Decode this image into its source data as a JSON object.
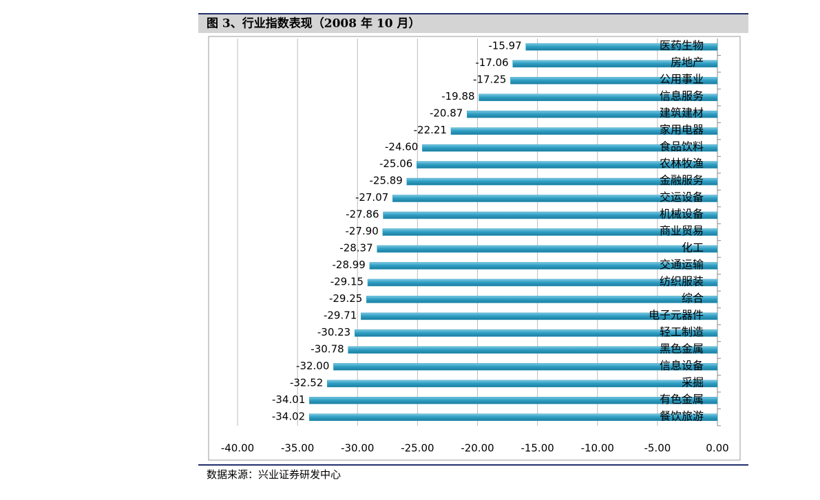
{
  "chart_data": {
    "type": "hbar",
    "title": "图 3、行业指数表现（2008 年 10 月）",
    "source": "数据来源：兴业证券研发中心",
    "categories": [
      "医药生物",
      "房地产",
      "公用事业",
      "信息服务",
      "建筑建材",
      "家用电器",
      "食品饮料",
      "农林牧渔",
      "金融服务",
      "交运设备",
      "机械设备",
      "商业贸易",
      "化工",
      "交通运输",
      "纺织服装",
      "综合",
      "电子元器件",
      "轻工制造",
      "黑色金属",
      "信息设备",
      "采掘",
      "有色金属",
      "餐饮旅游"
    ],
    "values": [
      -15.97,
      -17.06,
      -17.25,
      -19.88,
      -20.87,
      -22.21,
      -24.6,
      -25.06,
      -25.89,
      -27.07,
      -27.86,
      -27.9,
      -28.37,
      -28.99,
      -29.15,
      -29.25,
      -29.71,
      -30.23,
      -30.78,
      -32,
      -32.52,
      -34.01,
      -34.02
    ],
    "value_labels": [
      "-15.97",
      "-17.06",
      "-17.25",
      "-19.88",
      "-20.87",
      "-22.21",
      "-24.60",
      "-25.06",
      "-25.89",
      "-27.07",
      "-27.86",
      "-27.90",
      "-28.37",
      "-28.99",
      "-29.15",
      "-29.25",
      "-29.71",
      "-30.23",
      "-30.78",
      "-32.00",
      "-32.52",
      "-34.01",
      "-34.02"
    ],
    "color": "#2f9fc4",
    "xlim": [
      -40,
      0
    ],
    "xticks": [
      {
        "value": -40,
        "label": "-40.00"
      },
      {
        "value": -35,
        "label": "-35.00"
      },
      {
        "value": -30,
        "label": "-30.00"
      },
      {
        "value": -25,
        "label": "-25.00"
      },
      {
        "value": -20,
        "label": "-20.00"
      },
      {
        "value": -15,
        "label": "-15.00"
      },
      {
        "value": -10,
        "label": "-10.00"
      },
      {
        "value": -5,
        "label": "-5.00"
      },
      {
        "value": 0,
        "label": "0.00"
      }
    ],
    "grid": true
  }
}
